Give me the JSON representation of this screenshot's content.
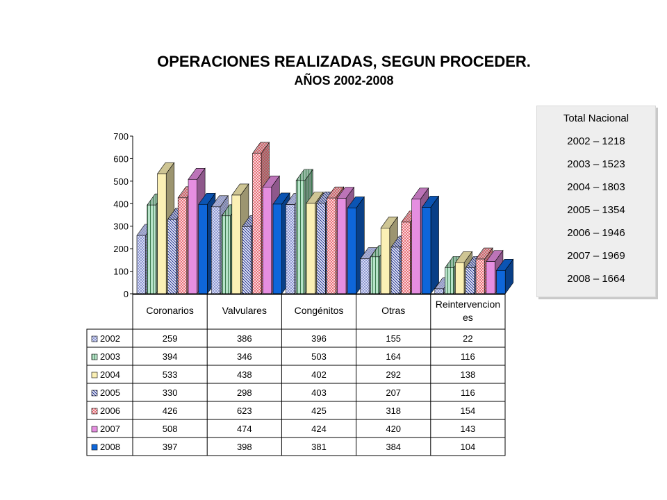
{
  "chart_data": {
    "type": "bar",
    "title": "OPERACIONES REALIZADAS, SEGUN PROCEDER.",
    "subtitle": "AÑOS 2002-2008",
    "categories": [
      "Coronarios",
      "Valvulares",
      "Congénitos",
      "Otras",
      "Reintervenciones"
    ],
    "category_lines": [
      [
        "Coronarios"
      ],
      [
        "Valvulares"
      ],
      [
        "Congénitos"
      ],
      [
        "Otras"
      ],
      [
        "Reintervencion",
        "es"
      ]
    ],
    "ylim": [
      0,
      700
    ],
    "yticks": [
      0,
      100,
      200,
      300,
      400,
      500,
      600,
      700
    ],
    "grid": false,
    "legend": "data-table-left",
    "series": [
      {
        "name": "2002",
        "values": [
          259,
          386,
          396,
          155,
          22
        ],
        "color": "#d7dcf5",
        "pattern": "checker"
      },
      {
        "name": "2003",
        "values": [
          394,
          346,
          503,
          164,
          116
        ],
        "color": "#b7e3c9",
        "pattern": "vlines"
      },
      {
        "name": "2004",
        "values": [
          533,
          438,
          402,
          292,
          138
        ],
        "color": "#fbf0b5",
        "pattern": "solid"
      },
      {
        "name": "2005",
        "values": [
          330,
          298,
          403,
          207,
          116
        ],
        "color": "#eef0fb",
        "pattern": "diag"
      },
      {
        "name": "2006",
        "values": [
          426,
          623,
          425,
          318,
          154
        ],
        "color": "#fbd9dd",
        "pattern": "dots"
      },
      {
        "name": "2007",
        "values": [
          508,
          474,
          424,
          420,
          143
        ],
        "color": "#e58ee0",
        "pattern": "solid"
      },
      {
        "name": "2008",
        "values": [
          397,
          398,
          381,
          384,
          104
        ],
        "color": "#0e66da",
        "pattern": "solid"
      }
    ]
  },
  "totals_box": {
    "heading": "Total Nacional",
    "lines": [
      "2002 – 1218",
      "2003 – 1523",
      "2004 – 1803",
      "2005 – 1354",
      "2006 – 1946",
      "2007 – 1969",
      "2008 – 1664"
    ]
  },
  "colors": {
    "axis": "#000000",
    "totals_box_bg": "#eeeeee"
  }
}
